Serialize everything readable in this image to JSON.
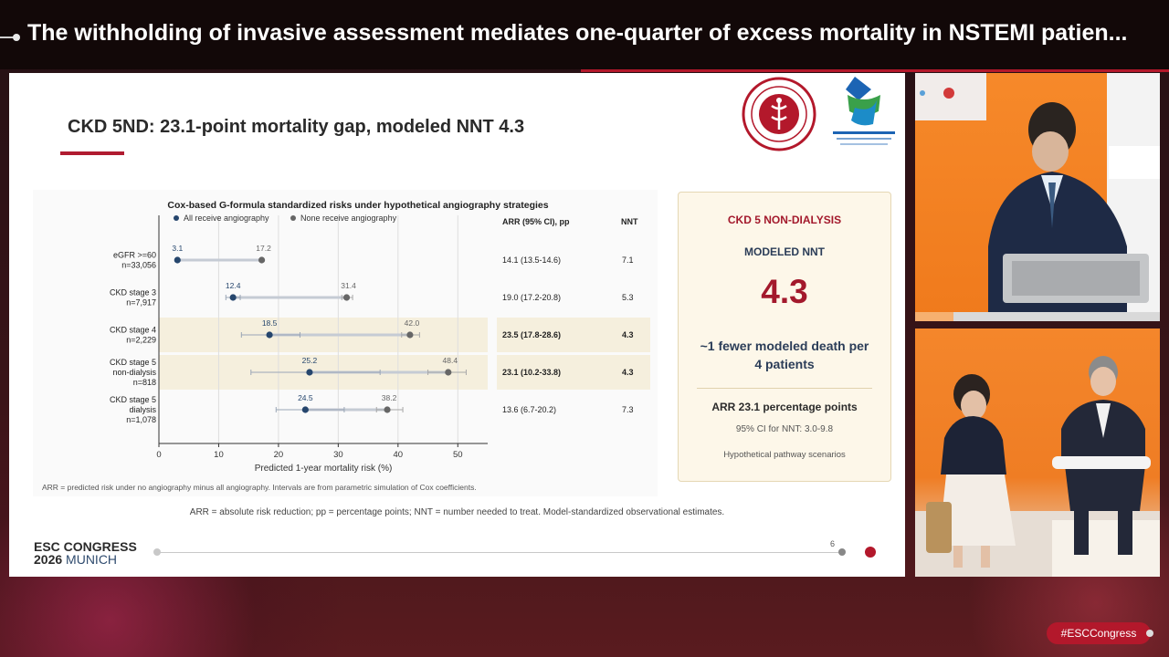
{
  "headline": "The withholding of invasive assessment mediates one-quarter of excess mortality in NSTEMI patien...",
  "slide": {
    "title": "CKD 5ND: 23.1-point mortality gap, modeled NNT 4.3",
    "page_number": "6",
    "esc_brand_line1": "ESC CONGRESS",
    "esc_brand_year": "2026",
    "esc_brand_city": "MUNICH",
    "bottom_footnote": "ARR = absolute risk reduction; pp = percentage points; NNT = number needed to treat. Model-standardized observational estimates.",
    "chart_footnote": "ARR = predicted risk under no angiography minus all angiography. Intervals are from parametric simulation of Cox coefficients."
  },
  "chart_data": {
    "type": "dumbbell",
    "title": "Cox-based G-formula standardized risks under hypothetical angiography strategies",
    "xlabel": "Predicted 1-year mortality risk (%)",
    "xlim": [
      0,
      55
    ],
    "xticks": [
      0,
      10,
      20,
      30,
      40,
      50
    ],
    "legend": [
      "All receive angiography",
      "None receive angiography"
    ],
    "legend_placement": "top",
    "grid": true,
    "col_headers": {
      "arr": "ARR (95% CI), pp",
      "nnt": "NNT"
    },
    "colors": {
      "angio": "#26466d",
      "none": "#666666",
      "highlight_band": "#f5efdd"
    },
    "rows": [
      {
        "label1": "eGFR >=60",
        "label2": "n=33,056",
        "label3": "",
        "angio": 3.1,
        "angio_lo": 3.1,
        "angio_hi": 3.1,
        "none": 17.2,
        "none_lo": 17.2,
        "none_hi": 17.2,
        "arr": "14.1 (13.5-14.6)",
        "nnt": "7.1",
        "highlight": false,
        "bold": false
      },
      {
        "label1": "CKD stage 3",
        "label2": "n=7,917",
        "label3": "",
        "angio": 12.4,
        "angio_lo": 11.2,
        "angio_hi": 13.6,
        "none": 31.4,
        "none_lo": 30.6,
        "none_hi": 32.4,
        "arr": "19.0 (17.2-20.8)",
        "nnt": "5.3",
        "highlight": false,
        "bold": false
      },
      {
        "label1": "CKD stage 4",
        "label2": "n=2,229",
        "label3": "",
        "angio": 18.5,
        "angio_lo": 13.8,
        "angio_hi": 23.6,
        "none": 42.0,
        "none_lo": 40.6,
        "none_hi": 43.6,
        "arr": "23.5 (17.8-28.6)",
        "nnt": "4.3",
        "highlight": true,
        "bold": true
      },
      {
        "label1": "CKD stage 5",
        "label2": "non-dialysis",
        "label3": "n=818",
        "angio": 25.2,
        "angio_lo": 15.4,
        "angio_hi": 37.0,
        "none": 48.4,
        "none_lo": 45.0,
        "none_hi": 51.4,
        "arr": "23.1 (10.2-33.8)",
        "nnt": "4.3",
        "highlight": true,
        "bold": true
      },
      {
        "label1": "CKD stage 5",
        "label2": "dialysis",
        "label3": "n=1,078",
        "angio": 24.5,
        "angio_lo": 19.6,
        "angio_hi": 31.0,
        "none": 38.2,
        "none_lo": 36.4,
        "none_hi": 40.8,
        "arr": "13.6 (6.7-20.2)",
        "nnt": "7.3",
        "highlight": false,
        "bold": false
      }
    ]
  },
  "card": {
    "heading": "CKD 5 NON-DIALYSIS",
    "subheading": "MODELED NNT",
    "value": "4.3",
    "description": "~1 fewer modeled death per 4 patients",
    "arr_line": "ARR 23.1 percentage points",
    "ci_line": "95% CI for NNT: 3.0-9.8",
    "scenario_line": "Hypothetical pathway scenarios"
  },
  "hashtag": "#ESCCongress"
}
